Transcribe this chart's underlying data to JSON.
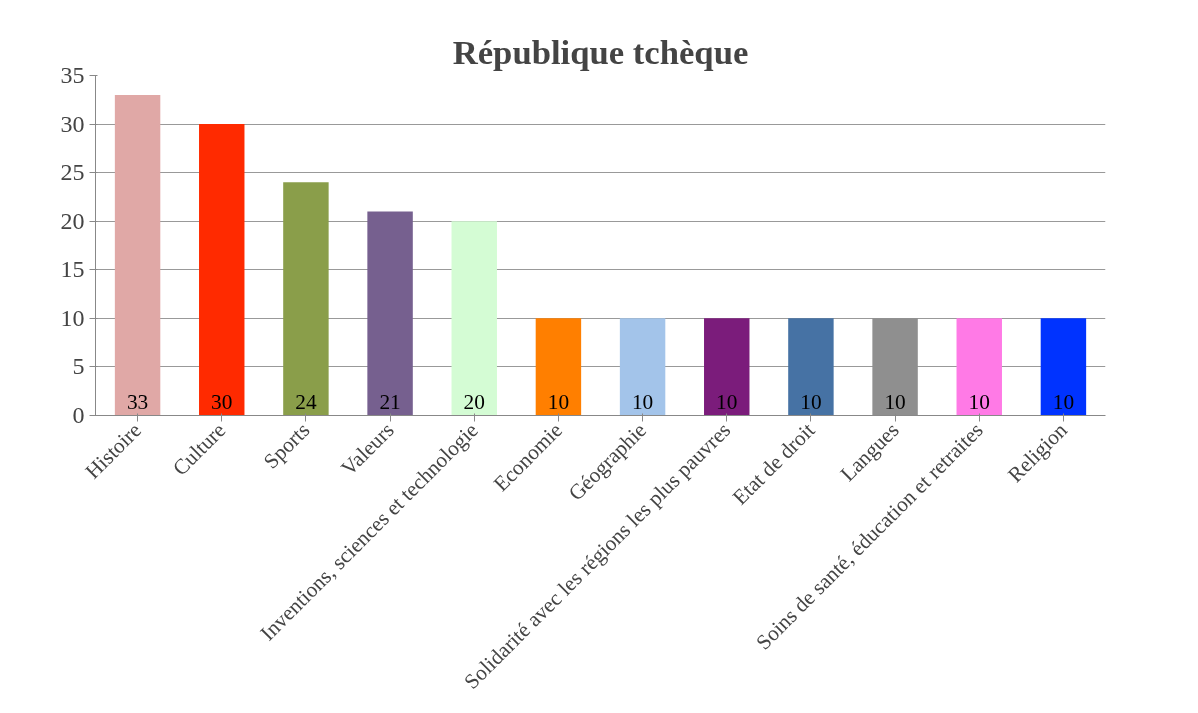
{
  "chart_data": {
    "type": "bar",
    "title": "République tchèque",
    "categories": [
      "Histoire",
      "Culture",
      "Sports",
      "Valeurs",
      "Inventions, sciences et technologie",
      "Economie",
      "Géographie",
      "Solidarité avec les régions les plus pauvres",
      "Etat de droit",
      "Langues",
      "Soins de santé, éducation et retraites",
      "Religion"
    ],
    "values": [
      33,
      30,
      24,
      21,
      20,
      10,
      10,
      10,
      10,
      10,
      10,
      10
    ],
    "colors": [
      "#e0a8a6",
      "#ff2a00",
      "#8a9e4a",
      "#76608f",
      "#d4fcd4",
      "#ff7f00",
      "#a3c4ea",
      "#7b1c7b",
      "#4672a4",
      "#8f8f8f",
      "#ff7ae6",
      "#0033ff"
    ],
    "ylim": [
      0,
      35
    ],
    "yticks": [
      0,
      5,
      10,
      15,
      20,
      25,
      30,
      35
    ],
    "grid": "y",
    "data_labels": true
  }
}
